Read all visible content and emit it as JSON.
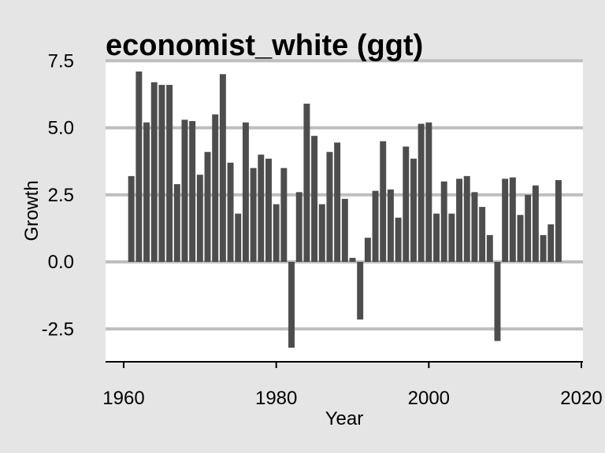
{
  "colors": {
    "background": "#e5e5e5",
    "panel": "#ffffff",
    "gridline": "#bebebe",
    "bar": "#4d4d4d",
    "axis": "#000000"
  },
  "chart_data": {
    "type": "bar",
    "title": "economist_white (ggt)",
    "xlabel": "Year",
    "ylabel": "Growth",
    "xlim": [
      1960,
      2020
    ],
    "ylim": [
      -3.5,
      7.5
    ],
    "x_ticks": [
      "1960",
      "1980",
      "2000",
      "2020"
    ],
    "y_ticks": [
      "7.5",
      "5.0",
      "2.5",
      "0.0",
      "-2.5"
    ],
    "grid": "horizontal",
    "legend": "none",
    "series": [
      {
        "x": [
          1961,
          1962,
          1963,
          1964,
          1965,
          1966,
          1967,
          1968,
          1969,
          1970,
          1971,
          1972,
          1973,
          1974,
          1975,
          1976,
          1977,
          1978,
          1979,
          1980,
          1981,
          1982,
          1983,
          1984,
          1985,
          1986,
          1987,
          1988,
          1989,
          1990,
          1991,
          1992,
          1993,
          1994,
          1995,
          1996,
          1997,
          1998,
          1999,
          2000,
          2001,
          2002,
          2003,
          2004,
          2005,
          2006,
          2007,
          2008,
          2009,
          2010,
          2011,
          2012,
          2013,
          2014,
          2015,
          2016,
          2017
        ],
        "values": [
          3.2,
          7.1,
          5.2,
          6.7,
          6.6,
          6.6,
          2.9,
          5.3,
          5.25,
          3.25,
          4.1,
          5.5,
          7.0,
          3.7,
          1.8,
          5.2,
          3.5,
          4.0,
          3.85,
          2.15,
          3.5,
          -3.2,
          2.6,
          5.9,
          4.7,
          2.15,
          4.1,
          4.45,
          2.35,
          0.15,
          -2.15,
          0.9,
          2.65,
          4.5,
          2.7,
          1.65,
          4.3,
          3.85,
          5.15,
          5.2,
          1.8,
          3.0,
          1.8,
          3.1,
          3.2,
          2.6,
          2.05,
          1.0,
          -2.95,
          3.1,
          3.15,
          1.75,
          2.5,
          2.85,
          1.0,
          1.4,
          3.05
        ]
      }
    ]
  }
}
